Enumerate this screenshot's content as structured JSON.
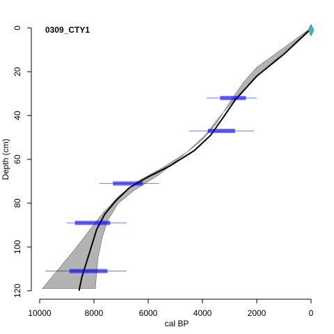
{
  "chart_data": {
    "type": "line",
    "title": "0309_CTY1",
    "x_label": "cal BP",
    "y_label": "Depth (cm)",
    "xlim": [
      10308,
      -410
    ],
    "ylim": [
      -4.8,
      124.8
    ],
    "xticks": [
      10000,
      8000,
      6000,
      4000,
      2000,
      0
    ],
    "yticks": [
      0,
      20,
      40,
      60,
      80,
      100,
      120
    ],
    "y_reversed": true,
    "band": {
      "color": "#b3b3b3",
      "x": [
        0,
        1000,
        2000,
        2500,
        3000,
        3500,
        4000,
        4800,
        5600,
        6500,
        7100,
        7500,
        7700,
        7850,
        7950,
        9900,
        9300,
        8700,
        8200,
        7700,
        7100,
        6400,
        5500,
        4600,
        3900,
        3400,
        2700,
        1800,
        900
      ],
      "values": [
        0,
        9,
        18,
        25,
        34,
        44,
        51,
        59,
        67,
        74,
        80,
        88,
        96,
        105,
        119,
        119,
        110,
        101,
        93,
        85,
        77,
        70,
        64,
        57,
        49,
        41,
        31,
        20,
        10
      ]
    },
    "series": [
      {
        "color": "#000000",
        "x": [
          50,
          1000,
          2000,
          2800,
          3300,
          3700,
          4300,
          5200,
          6000,
          6700,
          7200,
          7600,
          7900,
          8100,
          8300,
          8450,
          8550
        ],
        "values": [
          1,
          12,
          22,
          33,
          42,
          49,
          56,
          63,
          68,
          73,
          79,
          85,
          92,
          100,
          108,
          114,
          120
        ]
      }
    ],
    "dates": {
      "color": "#0000ff",
      "depth": [
        32,
        47,
        71,
        89,
        111
      ],
      "low68": [
        3350,
        3800,
        7300,
        8700,
        8900
      ],
      "high68": [
        2400,
        2800,
        6200,
        7400,
        7500
      ],
      "low95": [
        3850,
        4500,
        7800,
        9000,
        9800
      ],
      "high95": [
        2000,
        2100,
        5600,
        6800,
        6800
      ]
    },
    "surface": {
      "age": 0,
      "depth": 1,
      "color": "#48b4b4"
    }
  }
}
